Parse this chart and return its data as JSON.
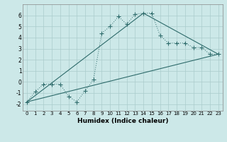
{
  "xlabel": "Humidex (Indice chaleur)",
  "background_color": "#cce8e8",
  "line_color": "#2e6b6b",
  "xlim": [
    -0.5,
    23.5
  ],
  "ylim": [
    -2.6,
    7.0
  ],
  "xticks": [
    0,
    1,
    2,
    3,
    4,
    5,
    6,
    7,
    8,
    9,
    10,
    11,
    12,
    13,
    14,
    15,
    16,
    17,
    18,
    19,
    20,
    21,
    22,
    23
  ],
  "yticks": [
    -2,
    -1,
    0,
    1,
    2,
    3,
    4,
    5,
    6
  ],
  "curve1_x": [
    0,
    1,
    2,
    3,
    4,
    5,
    6,
    7,
    8,
    9,
    10,
    11,
    12,
    13,
    14,
    15,
    16,
    17,
    18,
    19,
    20,
    21,
    22,
    23
  ],
  "curve1_y": [
    -1.8,
    -0.9,
    -0.2,
    -0.2,
    -0.2,
    -1.3,
    -1.8,
    -0.8,
    0.2,
    4.4,
    5.0,
    5.9,
    5.2,
    6.1,
    6.2,
    6.2,
    4.2,
    3.5,
    3.5,
    3.5,
    3.1,
    3.1,
    2.5,
    2.5
  ],
  "curve2_x": [
    0,
    23
  ],
  "curve2_y": [
    -1.8,
    2.5
  ],
  "curve3_x": [
    0,
    14,
    23
  ],
  "curve3_y": [
    -1.8,
    6.2,
    2.5
  ],
  "xlabel_fontsize": 6.5,
  "tick_fontsize": 5.0,
  "ytick_fontsize": 5.5
}
